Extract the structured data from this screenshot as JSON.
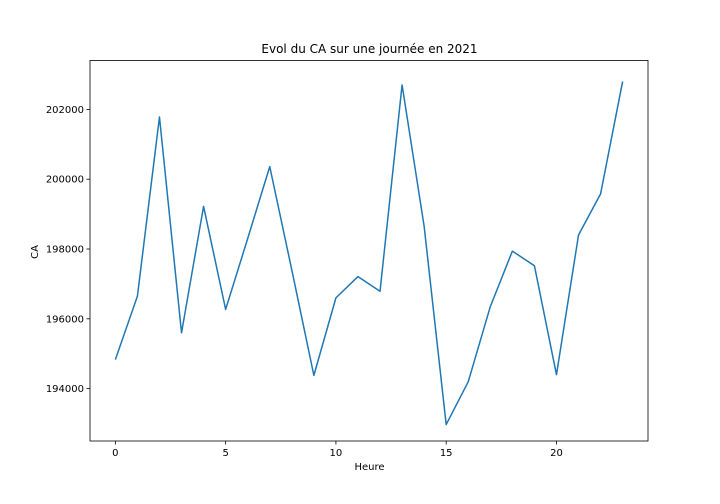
{
  "chart_data": {
    "type": "line",
    "title": "Evol du CA sur une journée en 2021",
    "xlabel": "Heure",
    "ylabel": "CA",
    "xlim": [
      -1.15,
      24.15
    ],
    "ylim": [
      192500,
      203400
    ],
    "xticks": [
      0,
      5,
      10,
      15,
      20
    ],
    "xtick_labels": [
      "0",
      "5",
      "10",
      "15",
      "20"
    ],
    "yticks": [
      194000,
      196000,
      198000,
      200000,
      202000
    ],
    "ytick_labels": [
      "194000",
      "196000",
      "198000",
      "200000",
      "202000"
    ],
    "grid": false,
    "legend": "none",
    "series": [
      {
        "color": "#1f77b4",
        "x": [
          0,
          1,
          2,
          3,
          4,
          5,
          6,
          7,
          8,
          9,
          10,
          11,
          12,
          13,
          14,
          15,
          16,
          17,
          18,
          19,
          20,
          21,
          22,
          23
        ],
        "y": [
          194830,
          196650,
          201780,
          195600,
          199220,
          196270,
          198300,
          200360,
          197400,
          194380,
          196600,
          197210,
          196790,
          202700,
          198650,
          192970,
          194200,
          196350,
          197940,
          197520,
          194400,
          198400,
          199580,
          202800
        ]
      }
    ]
  }
}
